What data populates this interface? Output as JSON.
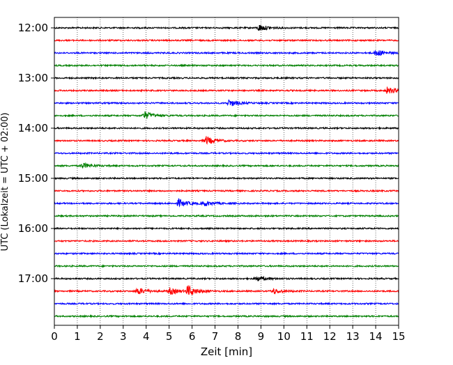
{
  "chart_data": {
    "type": "line",
    "title": "",
    "xlabel": "Zeit  [min]",
    "ylabel": "UTC (Lokalzeit = UTC + 02:00)",
    "xlim": [
      0,
      15
    ],
    "x_ticks": [
      0,
      1,
      2,
      3,
      4,
      5,
      6,
      7,
      8,
      9,
      10,
      11,
      12,
      13,
      14,
      15
    ],
    "x_tick_labels": [
      "0",
      "1",
      "2",
      "3",
      "4",
      "5",
      "6",
      "7",
      "8",
      "9",
      "10",
      "11",
      "12",
      "13",
      "14",
      "15"
    ],
    "y_tick_labels": [
      "12:00",
      "13:00",
      "14:00",
      "15:00",
      "16:00",
      "17:00"
    ],
    "grid_x": true,
    "trace_colors": [
      "#000000",
      "#ff0000",
      "#0000ff",
      "#008000"
    ],
    "traces": [
      {
        "start": "12:00",
        "events": [
          {
            "t": 8.9,
            "amp": 5
          }
        ]
      },
      {
        "start": "12:15",
        "events": []
      },
      {
        "start": "12:30",
        "events": [
          {
            "t": 14.0,
            "amp": 5
          }
        ]
      },
      {
        "start": "12:45",
        "events": []
      },
      {
        "start": "13:00",
        "events": []
      },
      {
        "start": "13:15",
        "events": [
          {
            "t": 14.5,
            "amp": 5
          }
        ]
      },
      {
        "start": "13:30",
        "events": [
          {
            "t": 7.6,
            "amp": 5
          }
        ]
      },
      {
        "start": "13:45",
        "events": [
          {
            "t": 3.9,
            "amp": 6
          }
        ]
      },
      {
        "start": "14:00",
        "events": []
      },
      {
        "start": "14:15",
        "events": [
          {
            "t": 6.6,
            "amp": 6
          }
        ]
      },
      {
        "start": "14:30",
        "events": []
      },
      {
        "start": "14:45",
        "events": [
          {
            "t": 1.2,
            "amp": 4
          }
        ]
      },
      {
        "start": "15:00",
        "events": []
      },
      {
        "start": "15:15",
        "events": []
      },
      {
        "start": "15:30",
        "events": [
          {
            "t": 5.4,
            "amp": 6
          },
          {
            "t": 6.5,
            "amp": 4
          }
        ]
      },
      {
        "start": "15:45",
        "events": []
      },
      {
        "start": "16:00",
        "events": []
      },
      {
        "start": "16:15",
        "events": []
      },
      {
        "start": "16:30",
        "events": []
      },
      {
        "start": "16:45",
        "events": []
      },
      {
        "start": "17:00",
        "events": [
          {
            "t": 8.8,
            "amp": 4
          }
        ]
      },
      {
        "start": "17:15",
        "events": [
          {
            "t": 3.6,
            "amp": 5
          },
          {
            "t": 5.0,
            "amp": 5
          },
          {
            "t": 5.8,
            "amp": 8
          },
          {
            "t": 9.5,
            "amp": 4
          }
        ]
      },
      {
        "start": "17:30",
        "events": []
      },
      {
        "start": "17:45",
        "events": []
      }
    ]
  }
}
